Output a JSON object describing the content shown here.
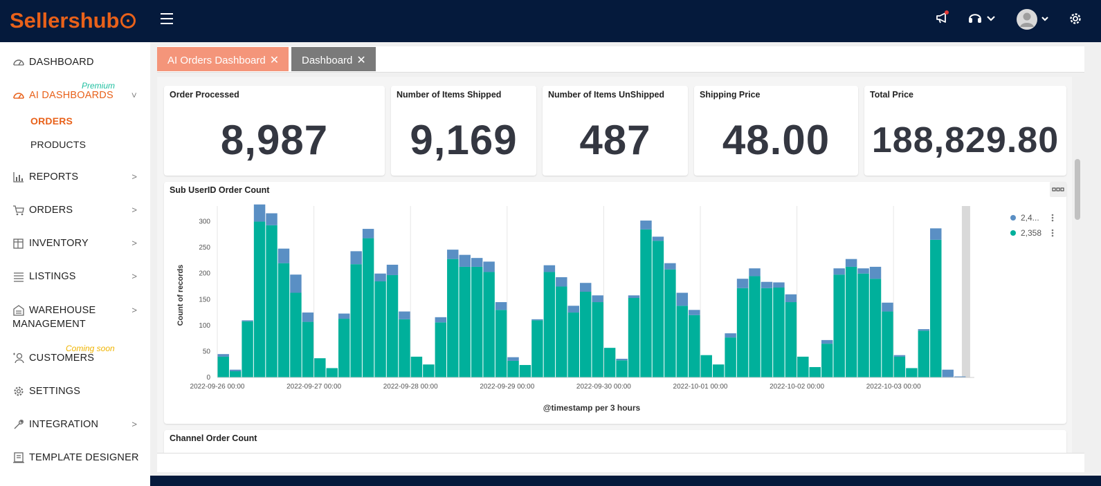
{
  "app": {
    "logo_text": "Sellershub",
    "brand_color": "#e8611a",
    "topbar_color": "#051a3c",
    "accent_teal": "#00b09b",
    "accent_blue": "#5a8fc4"
  },
  "topbar": {
    "icons": [
      "megaphone-icon",
      "headset-icon",
      "avatar",
      "gear-icon"
    ]
  },
  "sidebar": {
    "items": [
      {
        "label": "DASHBOARD",
        "icon": "speedometer-icon",
        "has_chevron": false
      },
      {
        "label": "AI DASHBOARDS",
        "icon": "speedometer-icon",
        "has_chevron": true,
        "active": true,
        "badge": "Premium"
      },
      {
        "label": "REPORTS",
        "icon": "chart-icon",
        "has_chevron": true
      },
      {
        "label": "ORDERS",
        "icon": "cart-icon",
        "has_chevron": true
      },
      {
        "label": "INVENTORY",
        "icon": "box-icon",
        "has_chevron": true
      },
      {
        "label": "LISTINGS",
        "icon": "list-icon",
        "has_chevron": true
      },
      {
        "label": "WAREHOUSE MANAGEMENT",
        "line1": "WAREHOUSE",
        "line2": "MANAGEMENT",
        "icon": "warehouse-icon",
        "has_chevron": true
      },
      {
        "label": "CUSTOMERS",
        "icon": "customer-icon",
        "has_chevron": false,
        "badge": "Coming soon"
      },
      {
        "label": "SETTINGS",
        "icon": "gear-icon",
        "has_chevron": false
      },
      {
        "label": "INTEGRATION",
        "icon": "wrench-icon",
        "has_chevron": true
      },
      {
        "label": "TEMPLATE DESIGNER",
        "icon": "template-icon",
        "has_chevron": false
      }
    ],
    "subitems": [
      {
        "label": "ORDERS",
        "active": true
      },
      {
        "label": "PRODUCTS",
        "active": false
      }
    ]
  },
  "tabs": [
    {
      "label": "AI Orders Dashboard",
      "active": true,
      "color": "#f4957a"
    },
    {
      "label": "Dashboard",
      "active": false,
      "color": "#7a7a7a"
    }
  ],
  "kpis": [
    {
      "title": "Order Processed",
      "value": "8,987"
    },
    {
      "title": "Number of Items Shipped",
      "value": "9,169"
    },
    {
      "title": "Number of Items UnShipped",
      "value": "487"
    },
    {
      "title": "Shipping Price",
      "value": "48.00"
    },
    {
      "title": "Total Price",
      "value": "188,829.80"
    }
  ],
  "panels": {
    "subuser_title": "Sub UserID Order Count",
    "channel_title": "Channel Order Count"
  },
  "chart_data": {
    "type": "bar",
    "stacked": true,
    "xlabel": "@timestamp per 3 hours",
    "ylabel": "Count of records",
    "ylim": [
      0,
      330
    ],
    "yticks": [
      0,
      50,
      100,
      150,
      200,
      250,
      300
    ],
    "xtick_labels": [
      "2022-09-26 00:00",
      "2022-09-27 00:00",
      "2022-09-28 00:00",
      "2022-09-29 00:00",
      "2022-09-30 00:00",
      "2022-10-01 00:00",
      "2022-10-02 00:00",
      "2022-10-03 00:00"
    ],
    "bars_per_day": 8,
    "grid": true,
    "legend_position": "right",
    "series": [
      {
        "name": "2,358",
        "color": "#00b09b",
        "values": [
          40,
          12,
          108,
          300,
          293,
          220,
          163,
          107,
          37,
          18,
          113,
          218,
          268,
          185,
          197,
          112,
          40,
          25,
          106,
          228,
          213,
          213,
          203,
          130,
          32,
          24,
          110,
          203,
          175,
          125,
          165,
          145,
          57,
          33,
          153,
          285,
          263,
          208,
          138,
          120,
          43,
          25,
          77,
          172,
          195,
          172,
          173,
          145,
          40,
          20,
          65,
          198,
          213,
          200,
          190,
          127,
          40,
          18,
          90,
          265,
          0,
          0
        ]
      },
      {
        "name": "2,4...",
        "color": "#5a8fc4",
        "values": [
          5,
          3,
          2,
          33,
          23,
          28,
          35,
          18,
          0,
          0,
          10,
          25,
          18,
          15,
          20,
          15,
          0,
          0,
          10,
          18,
          23,
          17,
          20,
          15,
          7,
          0,
          2,
          13,
          18,
          13,
          17,
          13,
          0,
          3,
          5,
          17,
          8,
          12,
          25,
          10,
          0,
          0,
          8,
          18,
          15,
          12,
          10,
          15,
          0,
          0,
          7,
          12,
          15,
          10,
          23,
          17,
          3,
          0,
          3,
          22,
          15,
          2
        ]
      }
    ]
  }
}
